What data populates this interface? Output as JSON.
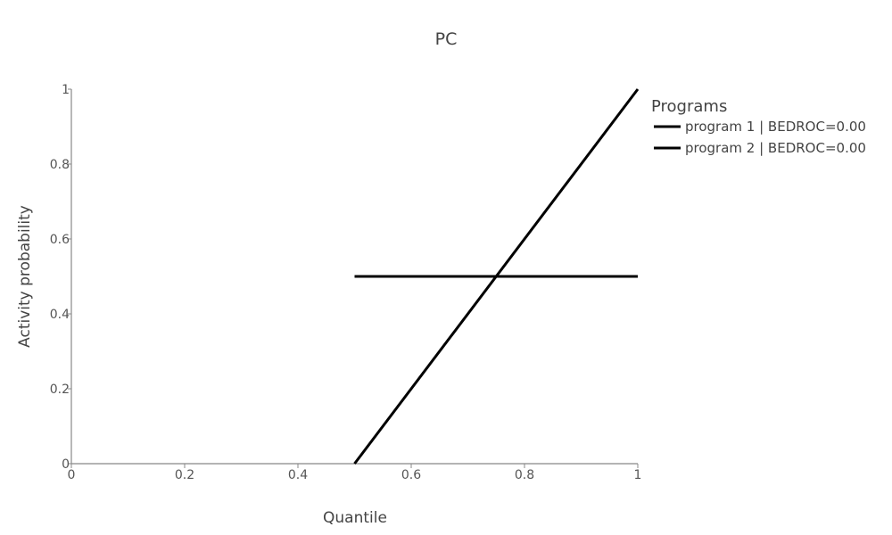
{
  "chart_data": {
    "type": "line",
    "title": "PC",
    "xlabel": "Quantile",
    "ylabel": "Activity probability",
    "xlim": [
      0,
      1
    ],
    "ylim": [
      0,
      1
    ],
    "xticks": [
      0,
      0.2,
      0.4,
      0.6,
      0.8,
      1
    ],
    "yticks": [
      0,
      0.2,
      0.4,
      0.6,
      0.8,
      1
    ],
    "xtick_labels": [
      "0",
      "0.2",
      "0.4",
      "0.6",
      "0.8",
      "1"
    ],
    "ytick_labels": [
      "0",
      "0.2",
      "0.4",
      "0.6",
      "0.8",
      "1"
    ],
    "grid": false,
    "legend": {
      "title": "Programs",
      "position": "right"
    },
    "series": [
      {
        "name": "program 1 | BEDROC=0.00",
        "color": "#000000",
        "x": [
          0.5,
          1.0
        ],
        "y": [
          0.0,
          1.0
        ]
      },
      {
        "name": "program 2 | BEDROC=0.00",
        "color": "#000000",
        "x": [
          0.5,
          1.0
        ],
        "y": [
          0.5,
          0.5
        ]
      }
    ]
  }
}
